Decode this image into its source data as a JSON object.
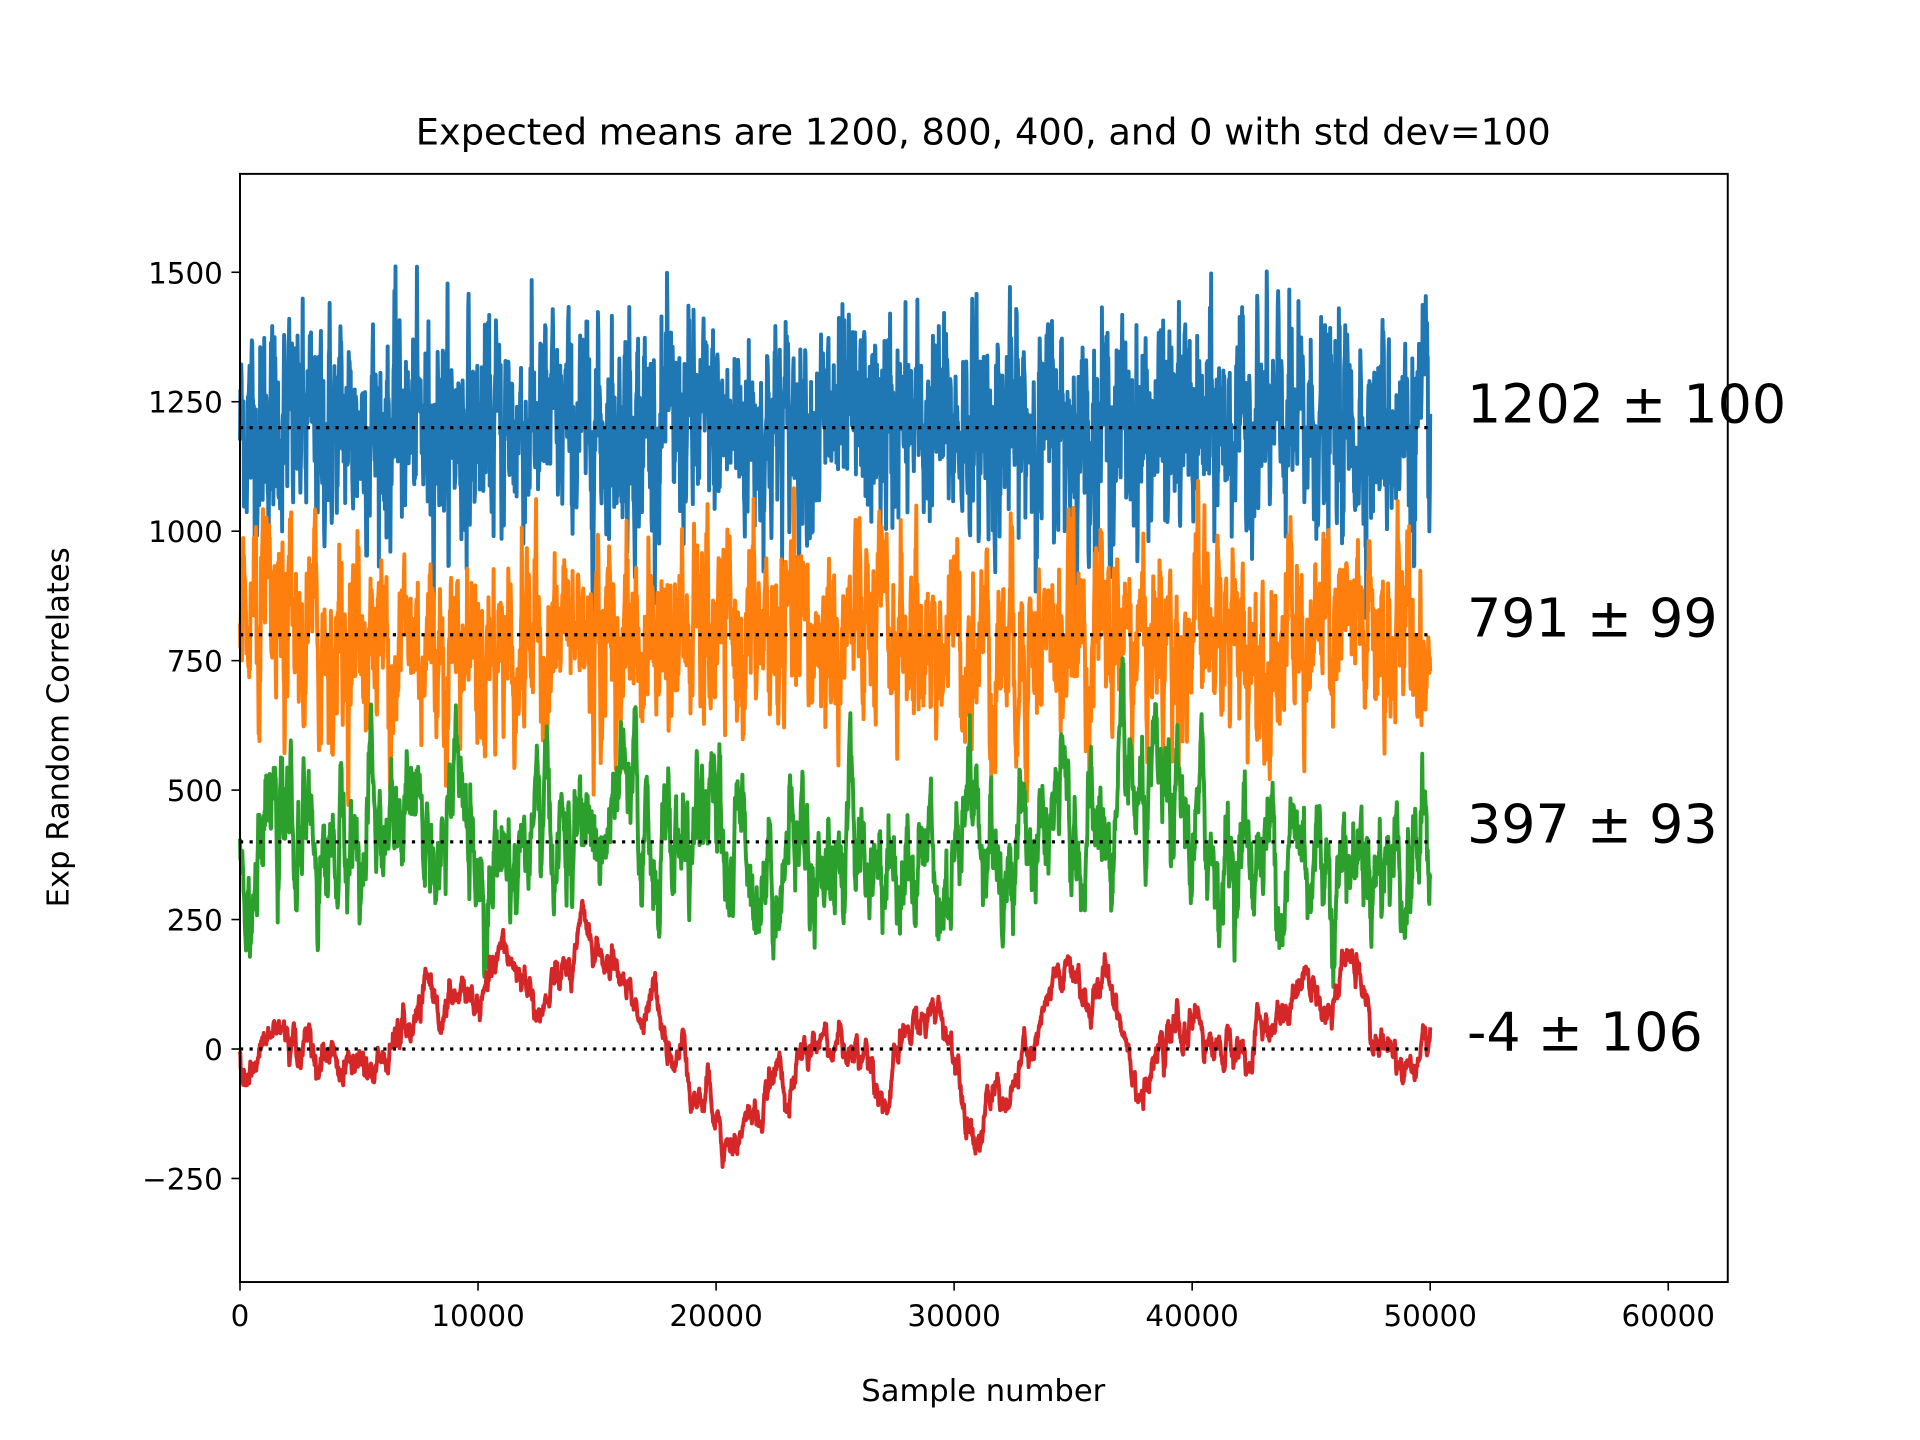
{
  "chart_data": {
    "type": "line",
    "title": "Expected means are 1200, 800, 400, and 0 with std dev=100",
    "xlabel": "Sample number",
    "ylabel": "Exp Random Correlates",
    "xlim": [
      0,
      62500
    ],
    "ylim": [
      -450,
      1690
    ],
    "xticks": [
      0,
      10000,
      20000,
      30000,
      40000,
      50000,
      60000
    ],
    "xtick_labels": [
      "0",
      "10000",
      "20000",
      "30000",
      "40000",
      "50000",
      "60000"
    ],
    "yticks": [
      -250,
      0,
      250,
      500,
      750,
      1000,
      1250,
      1500
    ],
    "ytick_labels": [
      "−250",
      "0",
      "250",
      "500",
      "750",
      "1000",
      "1250",
      "1500"
    ],
    "grid": false,
    "n_samples": 50000,
    "series": [
      {
        "color": "#1f77b4",
        "expected_mean": 1200,
        "measured_mean": 1202,
        "measured_std": 100,
        "annotation": "1202 ± 100"
      },
      {
        "color": "#ff7f0e",
        "expected_mean": 800,
        "measured_mean": 791,
        "measured_std": 99,
        "annotation": "791 ± 99"
      },
      {
        "color": "#2ca02c",
        "expected_mean": 400,
        "measured_mean": 397,
        "measured_std": 93,
        "annotation": "397 ± 93"
      },
      {
        "color": "#d62728",
        "expected_mean": 0,
        "measured_mean": -4,
        "measured_std": 106,
        "annotation": "-4 ± 106"
      }
    ],
    "reference_lines": [
      1200,
      800,
      400,
      0
    ],
    "reference_line_style": "dotted black"
  }
}
